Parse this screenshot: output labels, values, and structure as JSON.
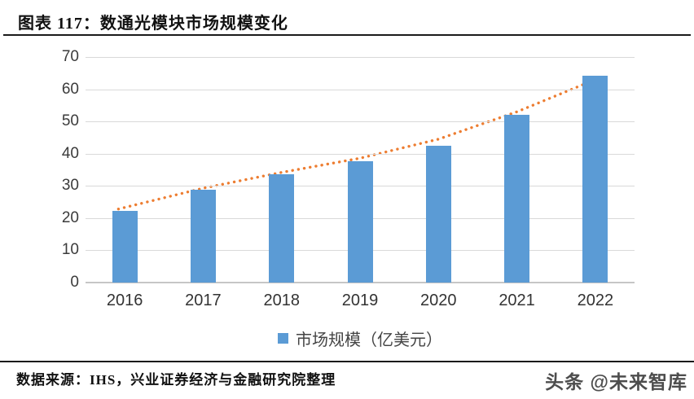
{
  "header": {
    "title": "图表 117：数通光模块市场规模变化"
  },
  "colors": {
    "bar": "#5b9bd5",
    "trendline": "#ed7d31",
    "gridline": "#d9d9d9",
    "axis_text": "#3b3b3b"
  },
  "chart_data": {
    "type": "bar",
    "title": "数通光模块市场规模变化",
    "categories": [
      "2016",
      "2017",
      "2018",
      "2019",
      "2020",
      "2021",
      "2022"
    ],
    "series": [
      {
        "name": "市场规模（亿美元）",
        "type": "bar",
        "color": "#5b9bd5",
        "values": [
          22.3,
          28.8,
          33.7,
          37.7,
          42.5,
          52.0,
          64.2
        ]
      },
      {
        "name": "趋势线",
        "type": "dotted-line",
        "color": "#ed7d31",
        "values": [
          23.3,
          29.3,
          34.2,
          38.6,
          44.5,
          53.0,
          63.0
        ]
      }
    ],
    "xlabel": "",
    "ylabel": "",
    "ylim": [
      0,
      70
    ],
    "yticks": [
      0,
      10,
      20,
      30,
      40,
      50,
      60,
      70
    ],
    "grid": true,
    "legend": {
      "position": "bottom",
      "label": "市场规模（亿美元）"
    }
  },
  "footer": {
    "source": "数据来源：IHS，兴业证券经济与金融研究院整理",
    "watermark": "头条 @未来智库"
  }
}
